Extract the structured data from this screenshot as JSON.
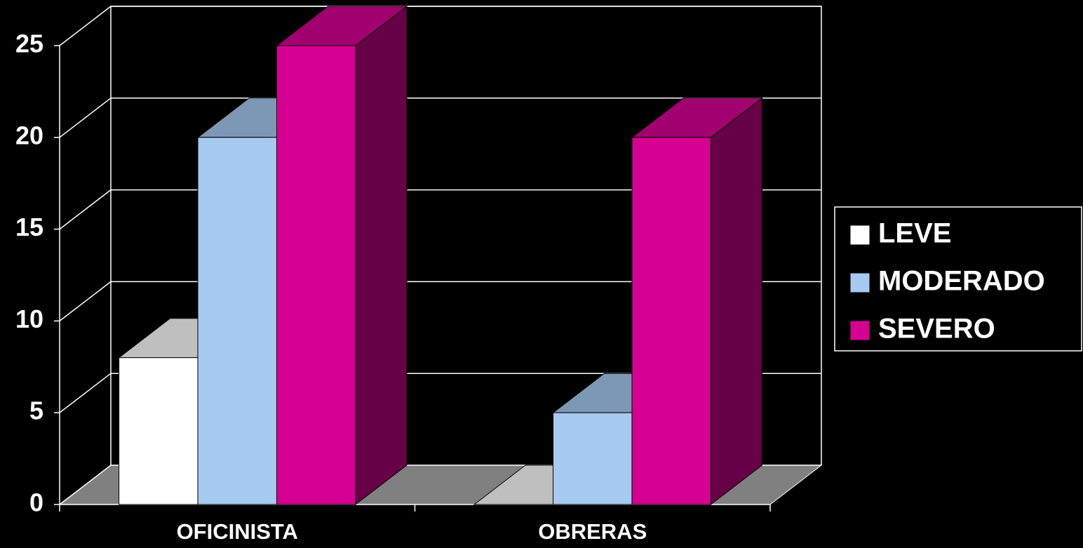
{
  "chart_data": {
    "type": "bar",
    "categories": [
      "OFICINISTA",
      "OBRERAS"
    ],
    "series": [
      {
        "name": "LEVE",
        "color": "#ffffff",
        "values": [
          8,
          0
        ]
      },
      {
        "name": "MODERADO",
        "color": "#a6caf0",
        "values": [
          20,
          5
        ]
      },
      {
        "name": "SEVERO",
        "color": "#d60093",
        "values": [
          25,
          20
        ]
      }
    ],
    "ylim": [
      0,
      25
    ],
    "yticks": [
      0,
      5,
      10,
      15,
      20,
      25
    ],
    "grid": true,
    "legend": "right"
  }
}
